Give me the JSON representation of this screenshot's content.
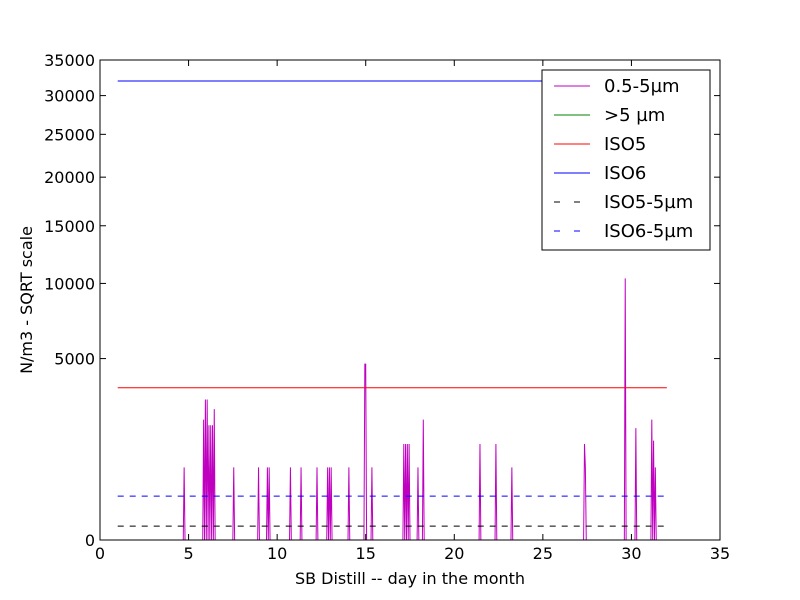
{
  "chart_data": {
    "type": "line",
    "title": "",
    "xlabel": "SB Distill -- day in the month",
    "ylabel": "N/m3 - SQRT scale",
    "xlim": [
      0,
      35
    ],
    "ylim": [
      0,
      35000
    ],
    "y_scale": "sqrt",
    "x_ticks": [
      0,
      5,
      10,
      15,
      20,
      25,
      30,
      35
    ],
    "y_ticks": [
      0,
      5000,
      10000,
      15000,
      20000,
      25000,
      30000,
      35000
    ],
    "grid": false,
    "legend_position": "top-right",
    "series": [
      {
        "name": "0.5-5µm",
        "color": "#bf00bf",
        "style": "solid",
        "x": [
          1.0,
          4.7,
          4.75,
          4.8,
          5.8,
          5.85,
          5.9,
          5.95,
          6.0,
          6.05,
          6.1,
          6.15,
          6.2,
          6.25,
          6.3,
          6.35,
          6.4,
          6.45,
          6.5,
          6.55,
          6.6,
          6.65,
          7.5,
          7.55,
          7.6,
          8.9,
          8.95,
          9.0,
          9.4,
          9.45,
          9.5,
          9.55,
          9.6,
          10.7,
          10.75,
          10.8,
          11.3,
          11.35,
          11.4,
          12.2,
          12.25,
          12.3,
          12.8,
          12.85,
          12.9,
          12.95,
          13.0,
          13.05,
          13.1,
          13.15,
          14.0,
          14.05,
          14.1,
          14.9,
          14.95,
          15.0,
          15.05,
          15.3,
          15.35,
          15.4,
          17.1,
          17.15,
          17.2,
          17.25,
          17.3,
          17.35,
          17.4,
          17.45,
          17.5,
          17.9,
          17.95,
          18.0,
          18.2,
          18.25,
          18.3,
          21.4,
          21.45,
          21.5,
          22.3,
          22.35,
          22.4,
          23.2,
          23.25,
          23.3,
          27.3,
          27.35,
          27.4,
          27.45,
          29.6,
          29.65,
          29.7,
          30.2,
          30.25,
          30.3,
          31.1,
          31.15,
          31.2,
          31.25,
          31.3,
          31.35,
          31.4,
          32.0
        ],
        "y": [
          0,
          0,
          800,
          0,
          0,
          2200,
          0,
          3000,
          0,
          3000,
          0,
          2000,
          0,
          2000,
          0,
          2000,
          0,
          2600,
          0,
          0,
          0,
          0,
          0,
          800,
          0,
          0,
          800,
          0,
          0,
          800,
          0,
          800,
          0,
          0,
          800,
          0,
          0,
          800,
          0,
          0,
          800,
          0,
          0,
          800,
          0,
          800,
          0,
          800,
          0,
          0,
          0,
          800,
          0,
          0,
          4700,
          4700,
          0,
          0,
          800,
          0,
          0,
          1400,
          0,
          1400,
          0,
          1400,
          0,
          1400,
          0,
          0,
          800,
          0,
          0,
          2200,
          0,
          0,
          1400,
          0,
          0,
          1400,
          0,
          0,
          800,
          0,
          0,
          1400,
          800,
          0,
          0,
          10400,
          0,
          0,
          1900,
          0,
          0,
          2200,
          0,
          1500,
          0,
          800,
          0,
          0
        ]
      },
      {
        "name": ">5 µm",
        "color": "#008000",
        "style": "solid",
        "x": [
          1.0,
          32.0
        ],
        "y": [
          0,
          0
        ]
      },
      {
        "name": "ISO5",
        "color": "#ff0000",
        "style": "solid",
        "x": [
          1.0,
          32.0
        ],
        "y": [
          3520,
          3520
        ]
      },
      {
        "name": "ISO6",
        "color": "#0000ff",
        "style": "solid",
        "x": [
          1.0,
          32.0
        ],
        "y": [
          32000,
          32000
        ]
      },
      {
        "name": "ISO5-5µm",
        "color": "#000000",
        "style": "dashed",
        "x": [
          1.0,
          32.0
        ],
        "y": [
          29,
          29
        ]
      },
      {
        "name": "ISO6-5µm",
        "color": "#0000ff",
        "style": "dashed",
        "x": [
          1.0,
          32.0
        ],
        "y": [
          293,
          293
        ]
      }
    ]
  }
}
